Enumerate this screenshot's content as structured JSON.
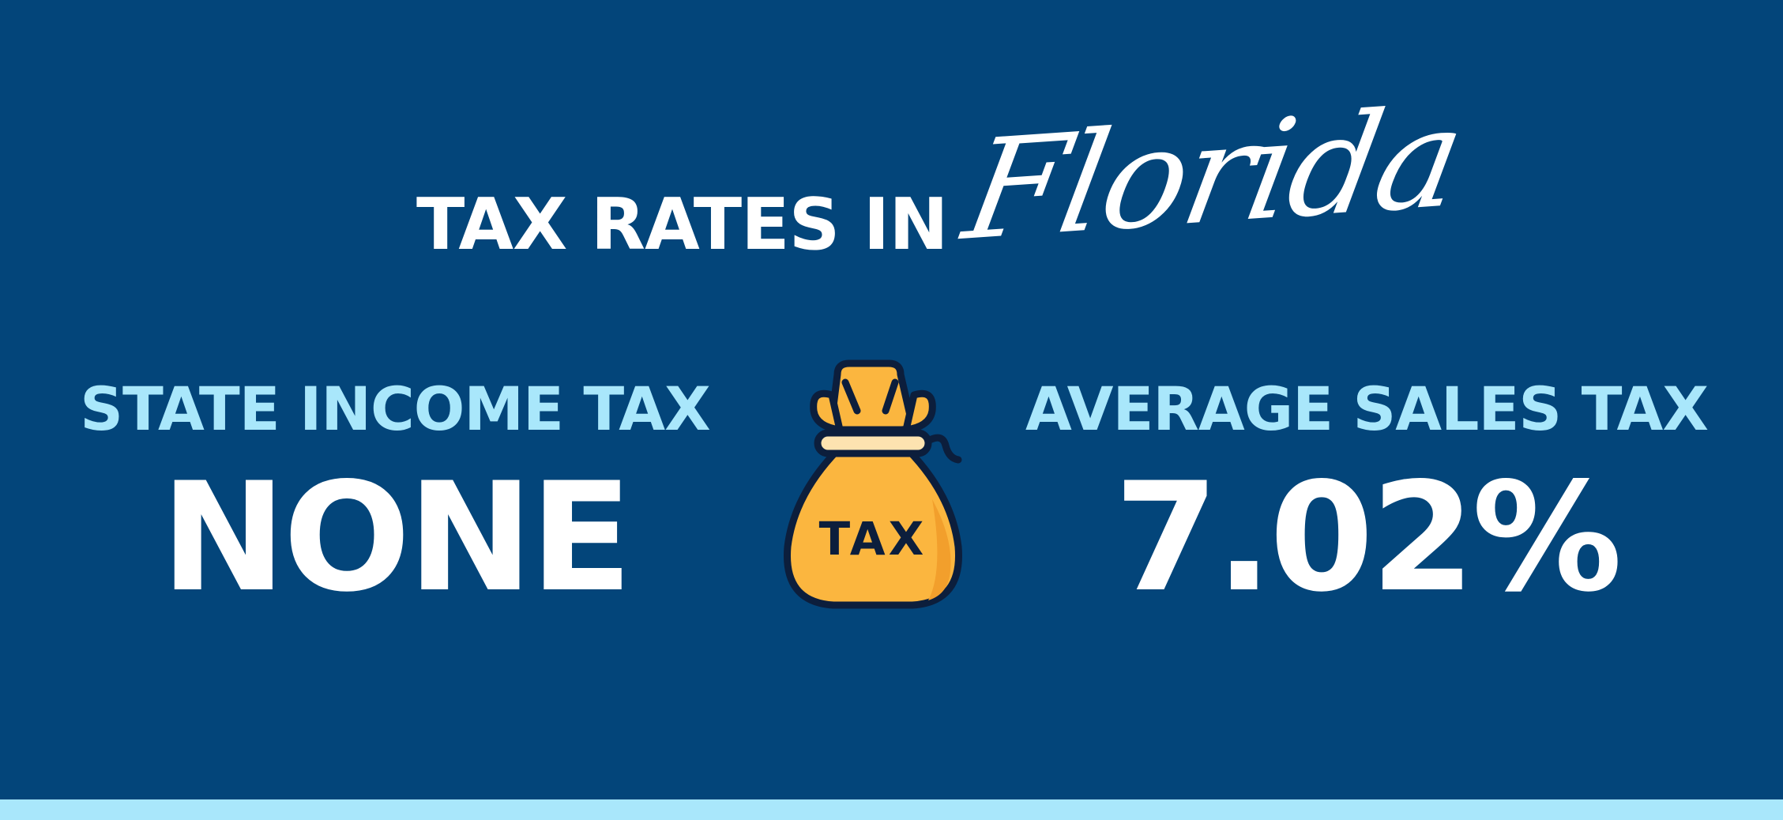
{
  "title": {
    "prefix": "TAX RATES IN",
    "script": "Florida"
  },
  "left": {
    "label": "STATE INCOME TAX",
    "value": "NONE"
  },
  "right": {
    "label": "AVERAGE SALES TAX",
    "value": "7.02%"
  },
  "bag": {
    "icon": "money-bag-icon",
    "text": "TAX"
  },
  "colors": {
    "background": "#03457a",
    "label": "#a9e7fb",
    "value": "#ffffff",
    "bag_fill": "#fbb63f",
    "bag_outline": "#0c1e3c",
    "stripe": "#a9e7fb"
  }
}
